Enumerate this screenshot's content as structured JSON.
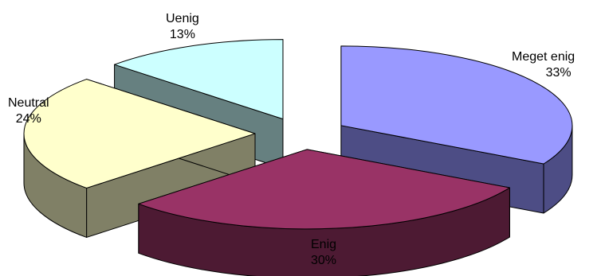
{
  "chart_data": {
    "type": "pie",
    "style": "3d-exploded",
    "categories": [
      "Meget enig",
      "Enig",
      "Neutral",
      "Uenig"
    ],
    "values": [
      33,
      30,
      24,
      13
    ],
    "labels": [
      "33%",
      "30%",
      "24%",
      "13%"
    ],
    "colors": {
      "Meget enig": {
        "top": "#9999ff",
        "side": "#4d4d85"
      },
      "Enig": {
        "top": "#993366",
        "side": "#4d1a33"
      },
      "Neutral": {
        "top": "#ffffcc",
        "side": "#808066"
      },
      "Uenig": {
        "top": "#ccffff",
        "side": "#668080"
      }
    },
    "legend": "none"
  }
}
